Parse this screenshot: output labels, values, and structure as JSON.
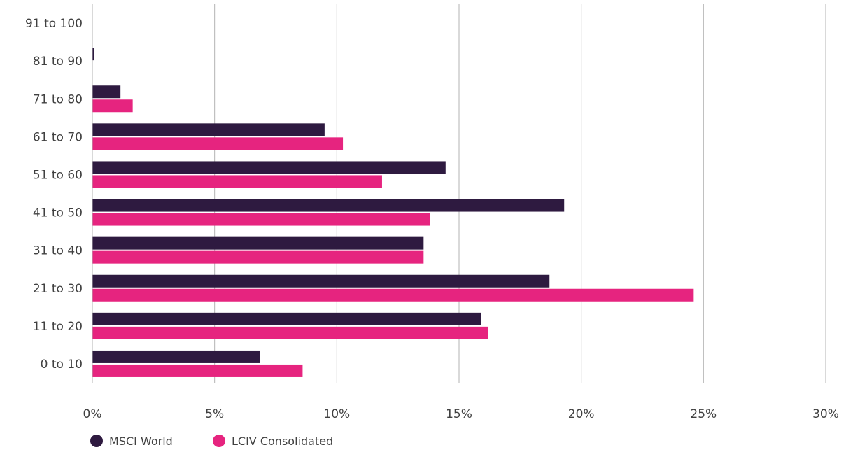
{
  "chart_data": {
    "type": "bar",
    "orientation": "horizontal",
    "categories": [
      "0 to 10",
      "11 to 20",
      "21 to 30",
      "31 to 40",
      "41 to 50",
      "51 to 60",
      "61 to 70",
      "71 to 80",
      "81 to 90",
      "91 to 100"
    ],
    "series": [
      {
        "name": "MSCI World",
        "color": "#2e1a40",
        "values": [
          6.85,
          15.9,
          18.7,
          13.55,
          19.3,
          14.45,
          9.5,
          1.15,
          0.05,
          0.0
        ]
      },
      {
        "name": "LCIV Consolidated",
        "color": "#e6247f",
        "values": [
          8.6,
          16.2,
          24.6,
          13.55,
          13.8,
          11.85,
          10.25,
          1.65,
          0.0,
          0.0
        ]
      }
    ],
    "xlim": [
      0,
      30
    ],
    "xticks": [
      "0%",
      "5%",
      "10%",
      "15%",
      "20%",
      "25%",
      "30%"
    ],
    "xtick_values": [
      0,
      5,
      10,
      15,
      20,
      25,
      30
    ],
    "grid": "vertical",
    "legend_position": "bottom-left"
  }
}
